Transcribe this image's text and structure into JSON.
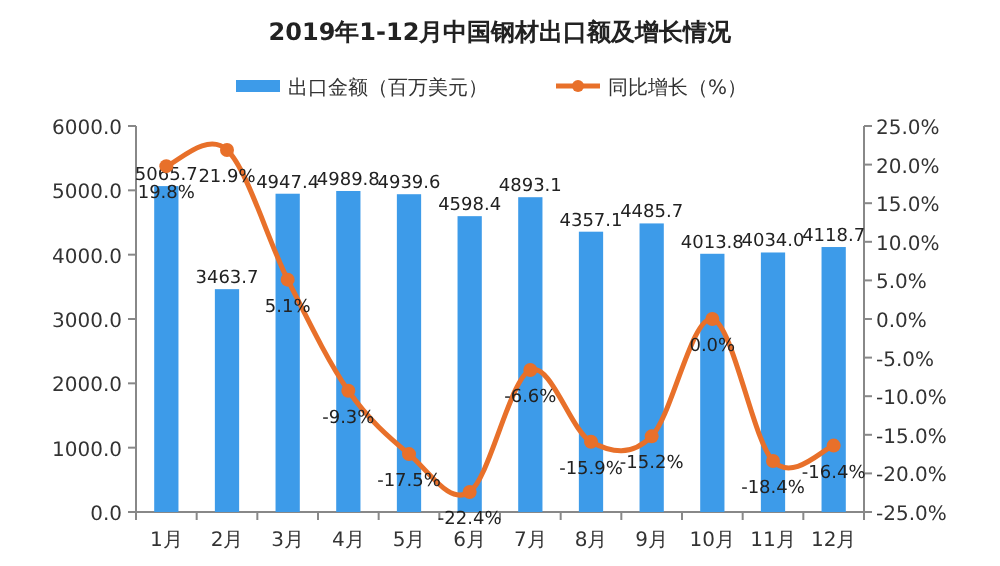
{
  "chart_data": {
    "type": "bar",
    "title": "2019年1-12月中国钢材出口额及增长情况",
    "categories": [
      "1月",
      "2月",
      "3月",
      "4月",
      "5月",
      "6月",
      "7月",
      "8月",
      "9月",
      "10月",
      "11月",
      "12月"
    ],
    "series": [
      {
        "name": "出口金额（百万美元）",
        "color": "#3d9be9",
        "value_labels": [
          "5065.7",
          "3463.7",
          "4947.4",
          "4989.8",
          "4939.6",
          "4598.4",
          "4893.1",
          "4357.1",
          "4485.7",
          "4013.8",
          "4034.0",
          "4118.7"
        ],
        "values": [
          5065.7,
          3463.7,
          4947.4,
          4989.8,
          4939.6,
          4598.4,
          4893.1,
          4357.1,
          4485.7,
          4013.8,
          4034.0,
          4118.7
        ]
      },
      {
        "name": "同比增长（%）",
        "type": "line",
        "axis": "y2",
        "color": "#e8702a",
        "marker": "circle",
        "value_labels": [
          "19.8%",
          "21.9%",
          "5.1%",
          "-9.3%",
          "-17.5%",
          "-22.4%",
          "-6.6%",
          "-15.9%",
          "-15.2%",
          "0.0%",
          "-18.4%",
          "-16.4%"
        ],
        "values": [
          19.8,
          21.9,
          5.1,
          -9.3,
          -17.5,
          -22.4,
          -6.6,
          -15.9,
          -15.2,
          0.0,
          -18.4,
          -16.4
        ]
      }
    ],
    "ylim": [
      0,
      6000
    ],
    "yticks": [
      {
        "value": 0,
        "label": "0.0"
      },
      {
        "value": 1000,
        "label": "1000.0"
      },
      {
        "value": 2000,
        "label": "2000.0"
      },
      {
        "value": 3000,
        "label": "3000.0"
      },
      {
        "value": 4000,
        "label": "4000.0"
      },
      {
        "value": 5000,
        "label": "5000.0"
      },
      {
        "value": 6000,
        "label": "6000.0"
      }
    ],
    "y2lim": [
      -25,
      25
    ],
    "y2ticks": [
      {
        "value": -25,
        "label": "-25.0%"
      },
      {
        "value": -20,
        "label": "-20.0%"
      },
      {
        "value": -15,
        "label": "-15.0%"
      },
      {
        "value": -10,
        "label": "-10.0%"
      },
      {
        "value": -5,
        "label": "-5.0%"
      },
      {
        "value": 0,
        "label": "0.0%"
      },
      {
        "value": 5,
        "label": "5.0%"
      },
      {
        "value": 10,
        "label": "10.0%"
      },
      {
        "value": 15,
        "label": "15.0%"
      },
      {
        "value": 20,
        "label": "20.0%"
      },
      {
        "value": 25,
        "label": "25.0%"
      }
    ],
    "legend": "top",
    "grid": false
  }
}
